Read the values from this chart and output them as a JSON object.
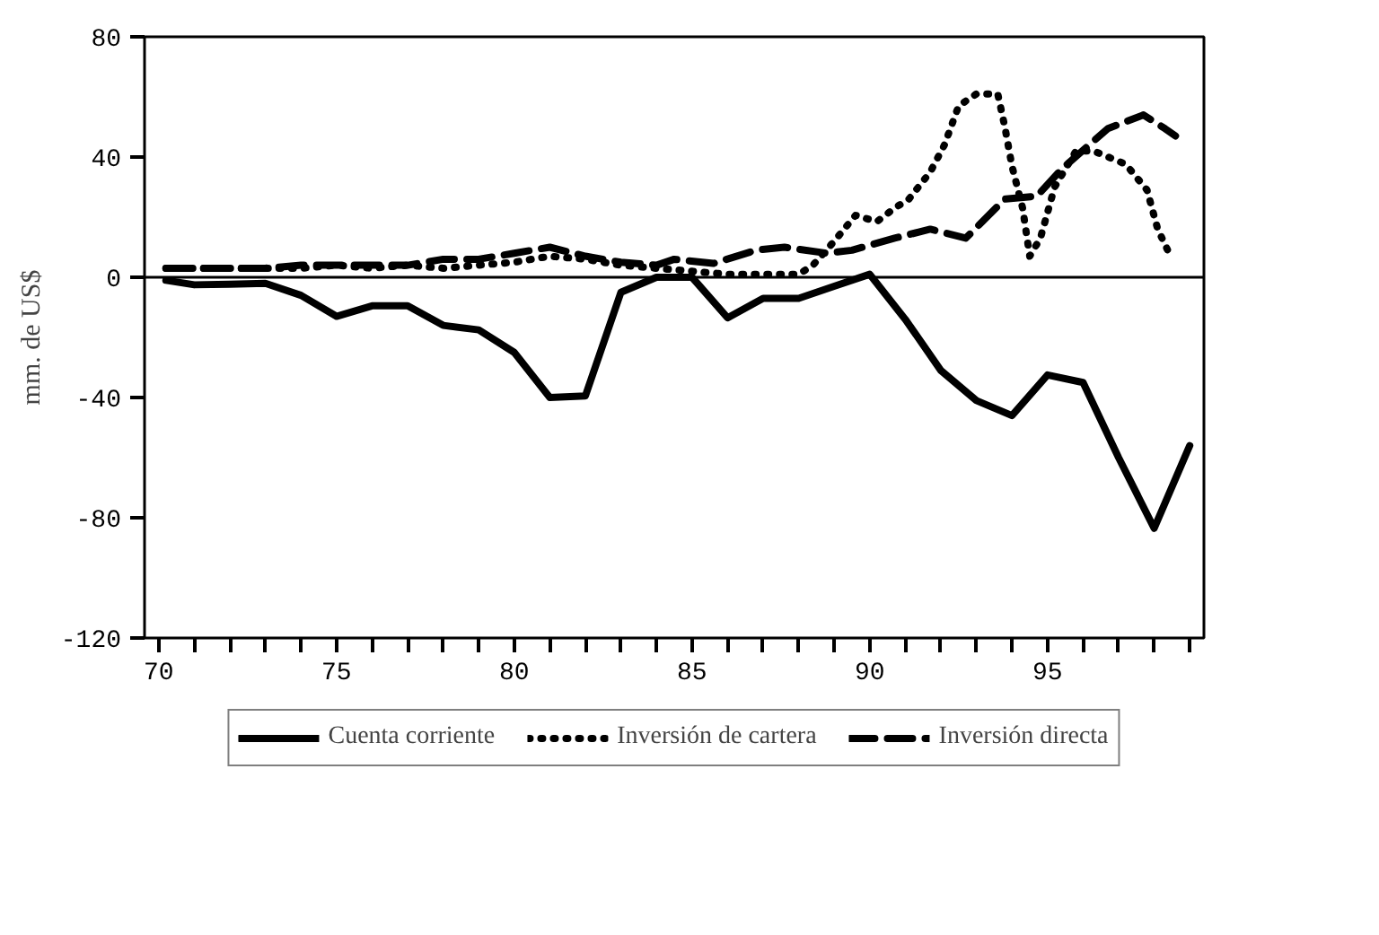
{
  "chart_data": {
    "type": "line",
    "ylabel": "mm. de US$",
    "xlim": [
      69.6,
      99.4
    ],
    "ylim": [
      -120,
      80
    ],
    "xticks": [
      70,
      {
        "value": 71,
        "label": null
      },
      {
        "value": 72,
        "label": null
      },
      {
        "value": 73,
        "label": null
      },
      {
        "value": 74,
        "label": null
      },
      75,
      {
        "value": 76,
        "label": null
      },
      {
        "value": 77,
        "label": null
      },
      {
        "value": 78,
        "label": null
      },
      {
        "value": 79,
        "label": null
      },
      80,
      {
        "value": 81,
        "label": null
      },
      {
        "value": 82,
        "label": null
      },
      {
        "value": 83,
        "label": null
      },
      {
        "value": 84,
        "label": null
      },
      85,
      {
        "value": 86,
        "label": null
      },
      {
        "value": 87,
        "label": null
      },
      {
        "value": 88,
        "label": null
      },
      {
        "value": 89,
        "label": null
      },
      90,
      {
        "value": 91,
        "label": null
      },
      {
        "value": 92,
        "label": null
      },
      {
        "value": 93,
        "label": null
      },
      {
        "value": 94,
        "label": null
      },
      95,
      {
        "value": 96,
        "label": null
      },
      {
        "value": 97,
        "label": null
      },
      {
        "value": 98,
        "label": null
      },
      {
        "value": 99,
        "label": null
      }
    ],
    "yticks": [
      -120,
      -80,
      -40,
      0,
      40,
      80
    ],
    "grid": false,
    "legend": "bottom",
    "ref_lines": [
      {
        "axis": "y",
        "value": 0,
        "color": "#000000"
      }
    ],
    "series": [
      {
        "name": "Cuenta corriente",
        "color": "#000000",
        "line_style": "solid",
        "x": [
          70.2,
          71,
          72,
          73,
          74,
          75,
          76,
          77,
          78,
          79,
          80,
          81,
          82,
          83,
          84,
          85,
          86,
          87,
          88,
          89,
          90,
          91,
          92,
          93,
          94,
          95,
          96,
          97,
          98,
          99
        ],
        "values": [
          -1,
          -2.5,
          -2.3,
          -2,
          -6,
          -13,
          -9.5,
          -9.5,
          -16,
          -17.5,
          -25,
          -40,
          -39.5,
          -5,
          0,
          0,
          -13.5,
          -7,
          -7,
          -3,
          1,
          -14,
          -31,
          -41,
          -46,
          -32.5,
          -35,
          -60,
          -83.5,
          -56
        ]
      },
      {
        "name": "Inversión de cartera",
        "color": "#000000",
        "line_style": "dotted",
        "x": [
          70.2,
          71,
          72,
          73,
          74,
          75,
          76,
          77,
          78,
          79,
          80,
          81,
          82,
          83,
          84,
          85,
          86,
          87,
          88,
          88.4,
          89,
          89.6,
          90.2,
          90.7,
          91.1,
          91.7,
          92.1,
          92.5,
          93,
          93.6,
          93.8,
          94,
          94.3,
          94.5,
          94.8,
          95.2,
          95.8,
          96.3,
          97.2,
          97.8,
          98.1,
          98.5
        ],
        "values": [
          3,
          3,
          3,
          3,
          3,
          4,
          3,
          4,
          3,
          4,
          5,
          7,
          6,
          4,
          3,
          2,
          1,
          1,
          1,
          4,
          12,
          20.6,
          18.5,
          23,
          26,
          35,
          44,
          57,
          61,
          61,
          50,
          37,
          23,
          7,
          13,
          30,
          42,
          42,
          37.6,
          29,
          16,
          6
        ]
      },
      {
        "name": "Inversión directa",
        "color": "#000000",
        "line_style": "dashed",
        "x": [
          70.2,
          71,
          72,
          73,
          74,
          75,
          76,
          77,
          78,
          79,
          80,
          81,
          82,
          83,
          84,
          84.5,
          85.6,
          86.8,
          87.6,
          88.8,
          89.5,
          90.7,
          91.7,
          92.7,
          93.8,
          94.7,
          95.4,
          96.7,
          97.7,
          98.3,
          98.6
        ],
        "values": [
          3,
          3,
          3,
          3,
          4,
          4,
          4,
          4,
          6,
          6,
          8,
          10,
          7,
          5,
          4,
          6,
          4.6,
          9,
          10,
          8,
          9,
          13,
          16,
          13,
          26,
          27,
          36,
          49.5,
          54,
          49.5,
          47
        ]
      }
    ]
  }
}
